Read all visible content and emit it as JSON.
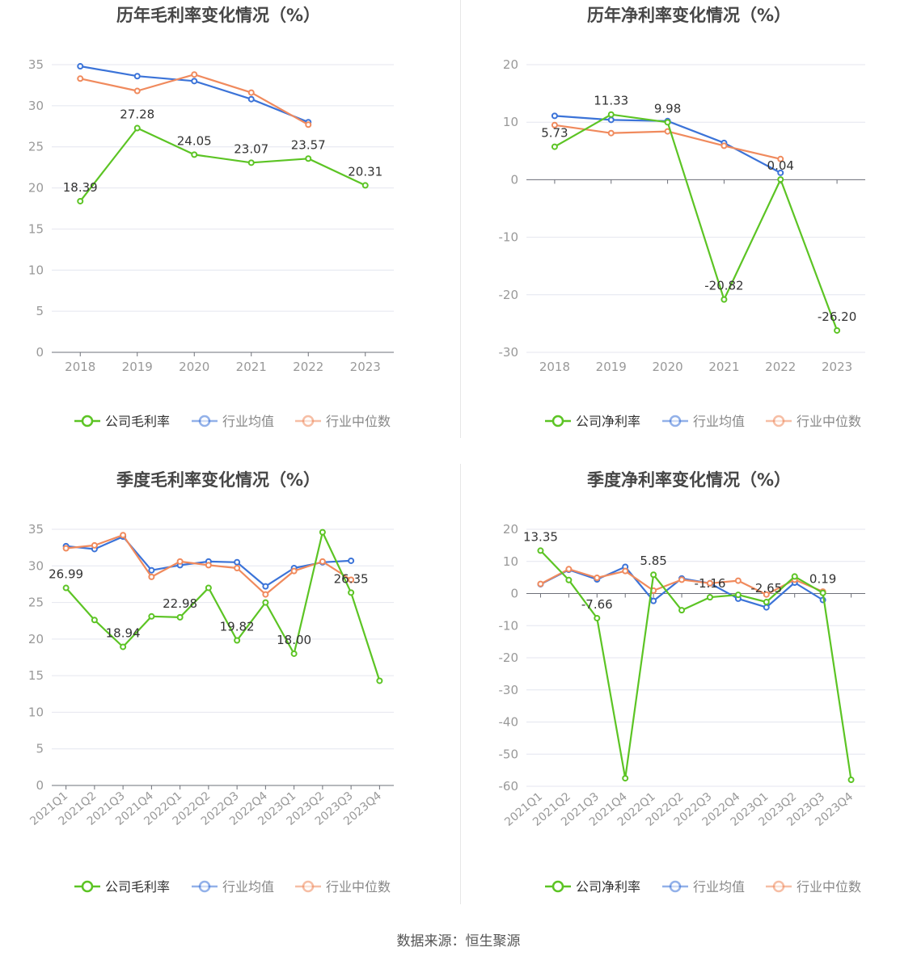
{
  "source_text": "数据来源：恒生聚源",
  "colors": {
    "company": "#5cc424",
    "avg": "#3b73d8",
    "median": "#f08a5d",
    "grid": "#e4e6ef",
    "axis": "#6e7079",
    "tick_text": "#999999",
    "title": "#464646"
  },
  "chart_data": [
    {
      "type": "line",
      "title": "历年毛利率变化情况（%）",
      "xlabel": "",
      "ylabel": "",
      "categories": [
        "2018",
        "2019",
        "2020",
        "2021",
        "2022",
        "2023"
      ],
      "ylim": [
        0,
        35
      ],
      "yticks": [
        0,
        5,
        10,
        15,
        20,
        25,
        30,
        35
      ],
      "grid": true,
      "legend_position": "bottom",
      "series": [
        {
          "name": "公司毛利率",
          "key": "company",
          "values": [
            18.39,
            27.28,
            24.05,
            23.07,
            23.57,
            20.31
          ],
          "labels": [
            "18.39",
            "27.28",
            "24.05",
            "23.07",
            "23.57",
            "20.31"
          ]
        },
        {
          "name": "行业均值",
          "key": "avg",
          "values": [
            34.8,
            33.6,
            33.0,
            30.8,
            28.0,
            null
          ]
        },
        {
          "name": "行业中位数",
          "key": "median",
          "values": [
            33.3,
            31.8,
            33.8,
            31.6,
            27.7,
            null
          ]
        }
      ]
    },
    {
      "type": "line",
      "title": "历年净利率变化情况（%）",
      "xlabel": "",
      "ylabel": "",
      "categories": [
        "2018",
        "2019",
        "2020",
        "2021",
        "2022",
        "2023"
      ],
      "ylim": [
        -30,
        20
      ],
      "yticks": [
        -30,
        -20,
        -10,
        0,
        10,
        20
      ],
      "grid": true,
      "legend_position": "bottom",
      "series": [
        {
          "name": "公司净利率",
          "key": "company",
          "values": [
            5.73,
            11.33,
            9.98,
            -20.82,
            0.04,
            -26.2
          ],
          "labels": [
            "5.73",
            "11.33",
            "9.98",
            "-20.82",
            "0.04",
            "-26.20"
          ]
        },
        {
          "name": "行业均值",
          "key": "avg",
          "values": [
            11.1,
            10.4,
            10.2,
            6.4,
            1.2,
            null
          ]
        },
        {
          "name": "行业中位数",
          "key": "median",
          "values": [
            9.5,
            8.1,
            8.4,
            5.9,
            3.6,
            null
          ]
        }
      ]
    },
    {
      "type": "line",
      "title": "季度毛利率变化情况（%）",
      "xlabel": "",
      "ylabel": "",
      "categories": [
        "2021Q1",
        "2021Q2",
        "2021Q3",
        "2021Q4",
        "2022Q1",
        "2022Q2",
        "2022Q3",
        "2022Q4",
        "2023Q1",
        "2023Q2",
        "2023Q3",
        "2023Q4"
      ],
      "ylim": [
        0,
        35
      ],
      "yticks": [
        0,
        5,
        10,
        15,
        20,
        25,
        30,
        35
      ],
      "grid": true,
      "legend_position": "bottom",
      "series": [
        {
          "name": "公司毛利率",
          "key": "company",
          "values": [
            26.99,
            22.6,
            18.94,
            23.1,
            22.98,
            27.0,
            19.82,
            25.0,
            18.0,
            34.6,
            26.35,
            14.3
          ],
          "labels": [
            "26.99",
            null,
            "18.94",
            null,
            "22.98",
            null,
            "19.82",
            null,
            "18.00",
            null,
            "26.35",
            null
          ]
        },
        {
          "name": "行业均值",
          "key": "avg",
          "values": [
            32.7,
            32.3,
            34.0,
            29.4,
            30.1,
            30.6,
            30.5,
            27.2,
            29.7,
            30.5,
            30.7,
            null
          ]
        },
        {
          "name": "行业中位数",
          "key": "median",
          "values": [
            32.4,
            32.8,
            34.2,
            28.5,
            30.6,
            30.1,
            29.7,
            26.1,
            29.3,
            30.6,
            28.1,
            null
          ]
        }
      ]
    },
    {
      "type": "line",
      "title": "季度净利率变化情况（%）",
      "xlabel": "",
      "ylabel": "",
      "categories": [
        "2021Q1",
        "2021Q2",
        "2021Q3",
        "2021Q4",
        "2022Q1",
        "2022Q2",
        "2022Q3",
        "2022Q4",
        "2023Q1",
        "2023Q2",
        "2023Q3",
        "2023Q4"
      ],
      "ylim": [
        -60,
        20
      ],
      "yticks": [
        -60,
        -50,
        -40,
        -30,
        -20,
        -10,
        0,
        10,
        20
      ],
      "grid": true,
      "legend_position": "bottom",
      "series": [
        {
          "name": "公司净利率",
          "key": "company",
          "values": [
            13.35,
            4.2,
            -7.66,
            -57.5,
            5.85,
            -5.2,
            -1.16,
            -0.4,
            -2.65,
            5.3,
            0.19,
            -58.0
          ],
          "labels": [
            "13.35",
            null,
            "-7.66",
            null,
            "5.85",
            null,
            "-1.16",
            null,
            "-2.65",
            null,
            "0.19",
            null
          ]
        },
        {
          "name": "行业均值",
          "key": "avg",
          "values": [
            2.9,
            7.4,
            4.4,
            8.3,
            -2.3,
            4.7,
            3.2,
            -1.6,
            -4.3,
            3.4,
            -2.0,
            null
          ]
        },
        {
          "name": "行业中位数",
          "key": "median",
          "values": [
            3.0,
            7.6,
            4.9,
            7.0,
            0.9,
            4.3,
            3.2,
            4.0,
            -0.3,
            4.3,
            0.6,
            null
          ]
        }
      ]
    }
  ]
}
